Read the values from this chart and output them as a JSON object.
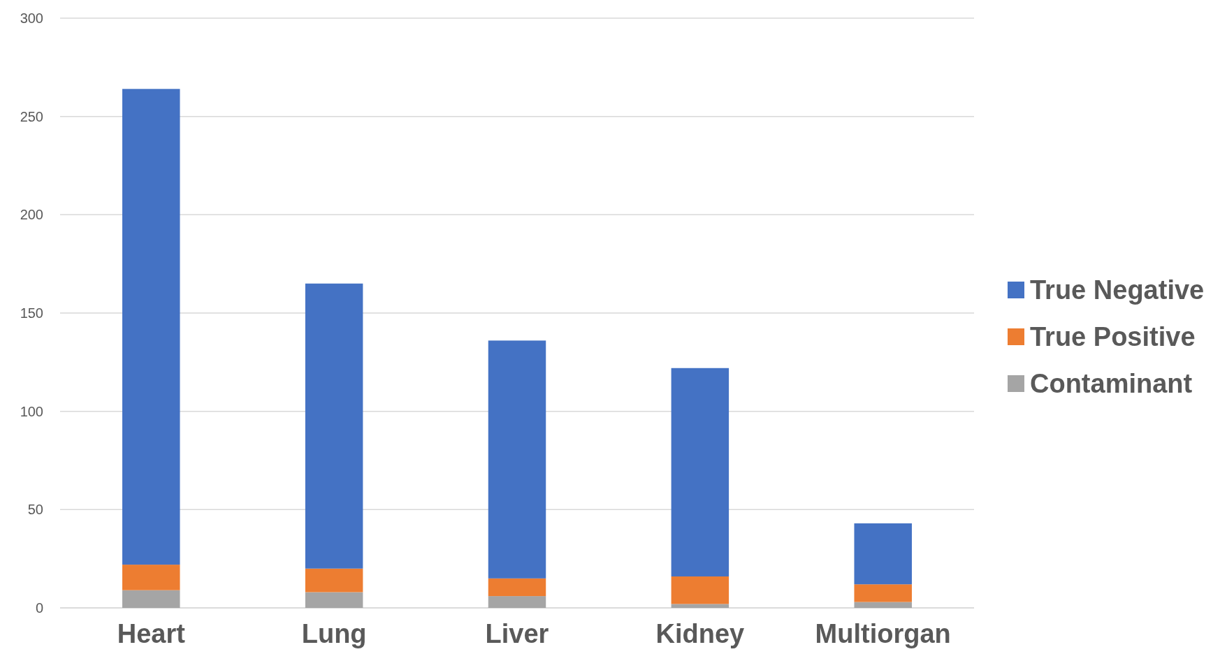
{
  "chart_data": {
    "type": "bar",
    "stacked": true,
    "categories": [
      "Heart",
      "Lung",
      "Liver",
      "Kidney",
      "Multiorgan"
    ],
    "series": [
      {
        "name": "Contaminant",
        "color": "#a5a5a5",
        "values": [
          9,
          8,
          6,
          2,
          3
        ]
      },
      {
        "name": "True Positive",
        "color": "#ed7d31",
        "values": [
          13,
          12,
          9,
          14,
          9
        ]
      },
      {
        "name": "True Negative",
        "color": "#4472c4",
        "values": [
          242,
          145,
          121,
          106,
          31
        ]
      }
    ],
    "ylim": [
      0,
      300
    ],
    "yticks": [
      0,
      50,
      100,
      150,
      200,
      250,
      300
    ],
    "grid": "y",
    "legend": "right"
  }
}
